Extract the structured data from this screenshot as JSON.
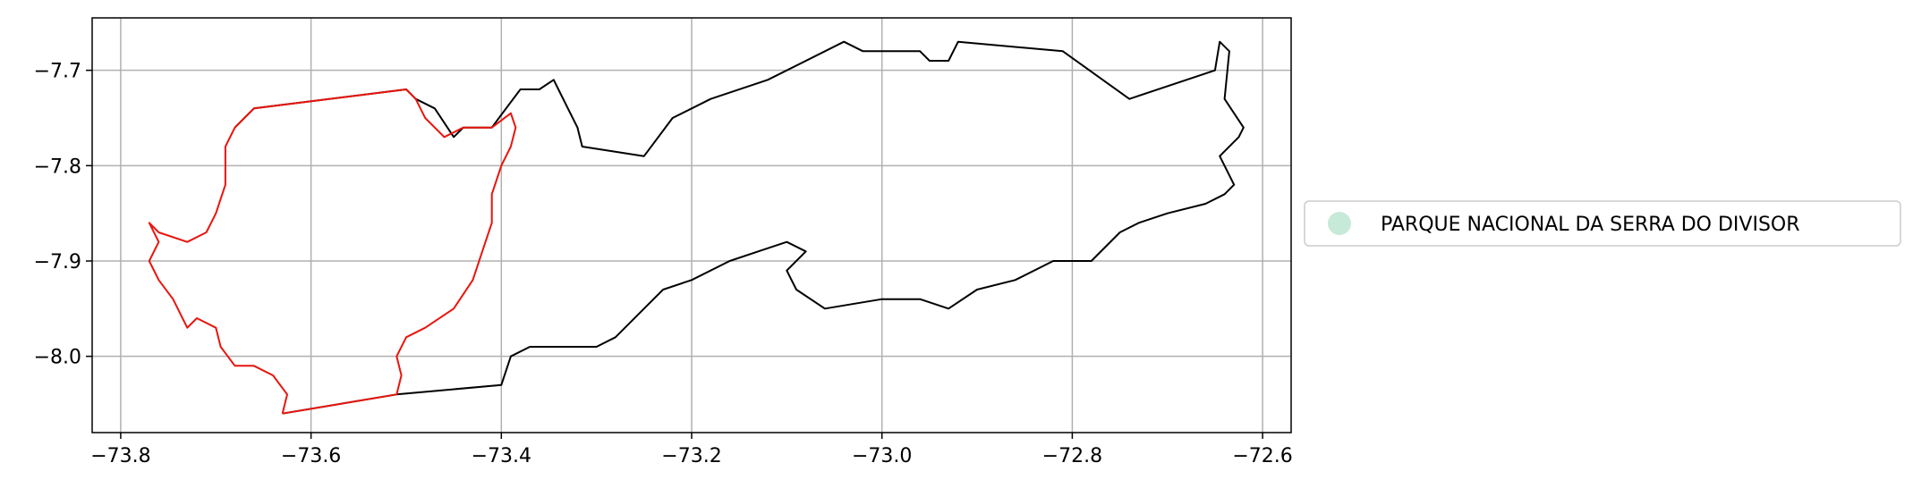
{
  "chart_data": {
    "type": "map",
    "x_ticks": [
      "−73.8",
      "−73.6",
      "−73.4",
      "−73.2",
      "−73.0",
      "−72.8",
      "−72.6"
    ],
    "y_ticks": [
      "−7.7",
      "−7.8",
      "−7.9",
      "−8.0"
    ],
    "grid": true,
    "legend_position": "right",
    "legend_entries": [
      {
        "label": "PARQUE NACIONAL DA SERRA DO DIVISOR",
        "color": "#c7e9d8"
      }
    ],
    "boundaries": [
      {
        "color": "#000000",
        "points": [
          [
            -73.68,
            -7.76
          ],
          [
            -73.66,
            -7.74
          ],
          [
            -73.5,
            -7.72
          ],
          [
            -73.49,
            -7.73
          ],
          [
            -73.47,
            -7.74
          ],
          [
            -73.45,
            -7.77
          ],
          [
            -73.44,
            -7.76
          ],
          [
            -73.41,
            -7.76
          ],
          [
            -73.395,
            -7.74
          ],
          [
            -73.38,
            -7.72
          ],
          [
            -73.36,
            -7.72
          ],
          [
            -73.345,
            -7.71
          ],
          [
            -73.34,
            -7.72
          ],
          [
            -73.33,
            -7.74
          ],
          [
            -73.32,
            -7.76
          ],
          [
            -73.315,
            -7.78
          ],
          [
            -73.25,
            -7.79
          ],
          [
            -73.22,
            -7.75
          ],
          [
            -73.18,
            -7.73
          ],
          [
            -73.12,
            -7.71
          ],
          [
            -73.04,
            -7.67
          ],
          [
            -73.02,
            -7.68
          ],
          [
            -72.96,
            -7.68
          ],
          [
            -72.95,
            -7.69
          ],
          [
            -72.93,
            -7.69
          ],
          [
            -72.92,
            -7.67
          ],
          [
            -72.81,
            -7.68
          ],
          [
            -72.74,
            -7.73
          ],
          [
            -72.65,
            -7.7
          ],
          [
            -72.645,
            -7.67
          ],
          [
            -72.635,
            -7.68
          ],
          [
            -72.64,
            -7.73
          ],
          [
            -72.62,
            -7.76
          ],
          [
            -72.625,
            -7.77
          ],
          [
            -72.645,
            -7.79
          ],
          [
            -72.63,
            -7.82
          ],
          [
            -72.64,
            -7.83
          ],
          [
            -72.66,
            -7.84
          ],
          [
            -72.7,
            -7.85
          ],
          [
            -72.73,
            -7.86
          ],
          [
            -72.75,
            -7.87
          ],
          [
            -72.78,
            -7.9
          ],
          [
            -72.8,
            -7.9
          ],
          [
            -72.82,
            -7.9
          ],
          [
            -72.86,
            -7.92
          ],
          [
            -72.9,
            -7.93
          ],
          [
            -72.93,
            -7.95
          ],
          [
            -72.96,
            -7.94
          ],
          [
            -73.0,
            -7.94
          ],
          [
            -73.06,
            -7.95
          ],
          [
            -73.09,
            -7.93
          ],
          [
            -73.1,
            -7.91
          ],
          [
            -73.08,
            -7.89
          ],
          [
            -73.1,
            -7.88
          ],
          [
            -73.13,
            -7.89
          ],
          [
            -73.16,
            -7.9
          ],
          [
            -73.2,
            -7.92
          ],
          [
            -73.23,
            -7.93
          ],
          [
            -73.25,
            -7.95
          ],
          [
            -73.28,
            -7.98
          ],
          [
            -73.3,
            -7.99
          ],
          [
            -73.34,
            -7.99
          ],
          [
            -73.37,
            -7.99
          ],
          [
            -73.39,
            -8.0
          ],
          [
            -73.4,
            -8.03
          ],
          [
            -73.51,
            -8.04
          ],
          [
            -73.63,
            -8.06
          ]
        ]
      },
      {
        "color": "#e8150d",
        "points": [
          [
            -73.63,
            -8.06
          ],
          [
            -73.51,
            -8.04
          ],
          [
            -73.505,
            -8.02
          ],
          [
            -73.51,
            -8.0
          ],
          [
            -73.5,
            -7.98
          ],
          [
            -73.48,
            -7.97
          ],
          [
            -73.45,
            -7.95
          ],
          [
            -73.43,
            -7.92
          ],
          [
            -73.42,
            -7.89
          ],
          [
            -73.41,
            -7.86
          ],
          [
            -73.41,
            -7.83
          ],
          [
            -73.4,
            -7.8
          ],
          [
            -73.39,
            -7.78
          ],
          [
            -73.385,
            -7.76
          ],
          [
            -73.39,
            -7.745
          ],
          [
            -73.41,
            -7.76
          ],
          [
            -73.44,
            -7.76
          ],
          [
            -73.46,
            -7.77
          ],
          [
            -73.48,
            -7.75
          ],
          [
            -73.49,
            -7.73
          ],
          [
            -73.5,
            -7.72
          ],
          [
            -73.66,
            -7.74
          ],
          [
            -73.68,
            -7.76
          ],
          [
            -73.69,
            -7.78
          ],
          [
            -73.69,
            -7.82
          ],
          [
            -73.7,
            -7.85
          ],
          [
            -73.71,
            -7.87
          ],
          [
            -73.73,
            -7.88
          ],
          [
            -73.76,
            -7.87
          ],
          [
            -73.77,
            -7.86
          ],
          [
            -73.76,
            -7.88
          ],
          [
            -73.77,
            -7.9
          ],
          [
            -73.76,
            -7.92
          ],
          [
            -73.745,
            -7.94
          ],
          [
            -73.73,
            -7.97
          ],
          [
            -73.72,
            -7.96
          ],
          [
            -73.7,
            -7.97
          ],
          [
            -73.695,
            -7.99
          ],
          [
            -73.68,
            -8.01
          ],
          [
            -73.66,
            -8.01
          ],
          [
            -73.64,
            -8.02
          ],
          [
            -73.625,
            -8.04
          ],
          [
            -73.63,
            -8.06
          ]
        ]
      }
    ]
  }
}
